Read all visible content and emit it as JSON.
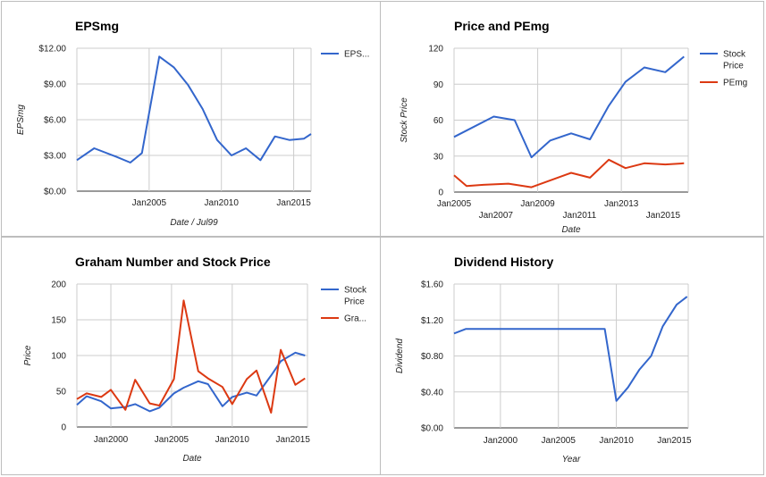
{
  "chart_data": [
    {
      "id": "eps",
      "type": "line",
      "title": "EPSmg",
      "xlabel": "Date / Jul99",
      "ylabel": "EPSmg",
      "xlim": [
        2000.0,
        2016.2
      ],
      "ylim": [
        0,
        12
      ],
      "y_ticks": [
        {
          "value": 0,
          "label": "$0.00"
        },
        {
          "value": 3,
          "label": "$3.00"
        },
        {
          "value": 6,
          "label": "$6.00"
        },
        {
          "value": 9,
          "label": "$9.00"
        },
        {
          "value": 12,
          "label": "$12.00"
        }
      ],
      "x_ticks": [
        {
          "value": 2005,
          "label": "Jan2005"
        },
        {
          "value": 2010,
          "label": "Jan2010"
        },
        {
          "value": 2015,
          "label": "Jan2015"
        }
      ],
      "x_grid_values": [
        2005,
        2010,
        2015
      ],
      "legend": "right",
      "series": [
        {
          "name": "EPS...",
          "color": "#3366cc",
          "x": [
            2000.0,
            2001.2,
            2002.7,
            2003.7,
            2004.5,
            2005.7,
            2006.7,
            2007.7,
            2008.7,
            2009.7,
            2010.7,
            2011.7,
            2012.7,
            2013.7,
            2014.7,
            2015.7,
            2016.2
          ],
          "y": [
            2.6,
            3.6,
            2.9,
            2.4,
            3.2,
            11.3,
            10.4,
            8.9,
            6.9,
            4.3,
            3.0,
            3.6,
            2.6,
            4.6,
            4.3,
            4.4,
            4.8
          ]
        }
      ]
    },
    {
      "id": "price-pe",
      "type": "line",
      "title": "Price and PEmg",
      "xlabel": "Date",
      "ylabel": "Stock Price",
      "xlim": [
        2005.0,
        2016.2
      ],
      "ylim": [
        0,
        120
      ],
      "y_ticks": [
        {
          "value": 0,
          "label": "0"
        },
        {
          "value": 30,
          "label": "30"
        },
        {
          "value": 60,
          "label": "60"
        },
        {
          "value": 90,
          "label": "90"
        },
        {
          "value": 120,
          "label": "120"
        }
      ],
      "x_ticks": [
        {
          "value": 2005,
          "label": "Jan2005",
          "row": 1
        },
        {
          "value": 2007,
          "label": "Jan2007",
          "row": 2
        },
        {
          "value": 2009,
          "label": "Jan2009",
          "row": 1
        },
        {
          "value": 2011,
          "label": "Jan2011",
          "row": 2
        },
        {
          "value": 2013,
          "label": "Jan2013",
          "row": 1
        },
        {
          "value": 2015,
          "label": "Jan2015",
          "row": 2
        }
      ],
      "x_grid_values": [
        2005,
        2009,
        2013
      ],
      "legend": "right",
      "series": [
        {
          "name": "Stock Price",
          "color": "#3366cc",
          "x": [
            2005.0,
            2006.9,
            2007.9,
            2008.7,
            2009.6,
            2010.6,
            2011.5,
            2012.4,
            2013.2,
            2014.1,
            2015.1,
            2016.0
          ],
          "y": [
            46,
            63,
            60,
            29,
            43,
            49,
            44,
            72,
            92,
            104,
            100,
            113
          ]
        },
        {
          "name": "PEmg",
          "color": "#dc3912",
          "x": [
            2005.0,
            2005.6,
            2006.4,
            2007.6,
            2008.7,
            2010.6,
            2011.5,
            2012.4,
            2013.2,
            2014.1,
            2015.1,
            2016.0
          ],
          "y": [
            14,
            5,
            6,
            7,
            4,
            16,
            12,
            27,
            20,
            24,
            23,
            24
          ]
        }
      ]
    },
    {
      "id": "graham",
      "type": "line",
      "title": "Graham Number and Stock Price",
      "xlabel": "Date",
      "ylabel": "Price",
      "xlim": [
        1997.2,
        2016.2
      ],
      "ylim": [
        0,
        200
      ],
      "y_ticks": [
        {
          "value": 0,
          "label": "0"
        },
        {
          "value": 50,
          "label": "50"
        },
        {
          "value": 100,
          "label": "100"
        },
        {
          "value": 150,
          "label": "150"
        },
        {
          "value": 200,
          "label": "200"
        }
      ],
      "x_ticks": [
        {
          "value": 2000,
          "label": "Jan2000"
        },
        {
          "value": 2005,
          "label": "Jan2005"
        },
        {
          "value": 2010,
          "label": "Jan2010"
        },
        {
          "value": 2015,
          "label": "Jan2015"
        }
      ],
      "x_grid_values": [
        2000,
        2005,
        2010
      ],
      "legend": "right",
      "series": [
        {
          "name": "Stock Price",
          "color": "#3366cc",
          "x": [
            1997.2,
            1998.0,
            1999.2,
            2000.0,
            2001.2,
            2002.0,
            2003.2,
            2004.0,
            2005.2,
            2006.0,
            2007.2,
            2008.0,
            2009.2,
            2010.0,
            2011.2,
            2012.0,
            2013.2,
            2014.0,
            2015.2,
            2016.0
          ],
          "y": [
            31,
            43,
            36,
            26,
            28,
            32,
            22,
            27,
            47,
            55,
            64,
            60,
            29,
            42,
            48,
            44,
            72,
            92,
            104,
            100
          ]
        },
        {
          "name": "Gra...",
          "color": "#dc3912",
          "x": [
            1997.2,
            1998.0,
            1999.2,
            2000.0,
            2001.2,
            2002.0,
            2003.2,
            2004.0,
            2005.2,
            2006.0,
            2007.2,
            2008.0,
            2009.2,
            2010.0,
            2011.2,
            2012.0,
            2013.2,
            2014.0,
            2015.2,
            2016.0
          ],
          "y": [
            39,
            47,
            42,
            52,
            24,
            66,
            33,
            30,
            67,
            177,
            78,
            68,
            56,
            32,
            67,
            79,
            20,
            108,
            59,
            68
          ]
        }
      ]
    },
    {
      "id": "dividend",
      "type": "line",
      "title": "Dividend History",
      "xlabel": "Year",
      "ylabel": "Dividend",
      "xlim": [
        1996.0,
        2016.2
      ],
      "ylim": [
        0,
        1.6
      ],
      "y_ticks": [
        {
          "value": 0,
          "label": "$0.00"
        },
        {
          "value": 0.4,
          "label": "$0.40"
        },
        {
          "value": 0.8,
          "label": "$0.80"
        },
        {
          "value": 1.2,
          "label": "$1.20"
        },
        {
          "value": 1.6,
          "label": "$1.60"
        }
      ],
      "x_ticks": [
        {
          "value": 2000,
          "label": "Jan2000"
        },
        {
          "value": 2005,
          "label": "Jan2005"
        },
        {
          "value": 2010,
          "label": "Jan2010"
        },
        {
          "value": 2015,
          "label": "Jan2015"
        }
      ],
      "x_grid_values": [
        2000,
        2005,
        2010
      ],
      "legend": "none",
      "series": [
        {
          "color": "#3366cc",
          "x": [
            1996.0,
            1997.0,
            2008.0,
            2009.0,
            2010.0,
            2011.0,
            2012.0,
            2013.0,
            2014.0,
            2015.2,
            2016.1
          ],
          "y": [
            1.05,
            1.1,
            1.1,
            1.1,
            0.3,
            0.45,
            0.65,
            0.8,
            1.13,
            1.37,
            1.46
          ]
        }
      ]
    }
  ]
}
